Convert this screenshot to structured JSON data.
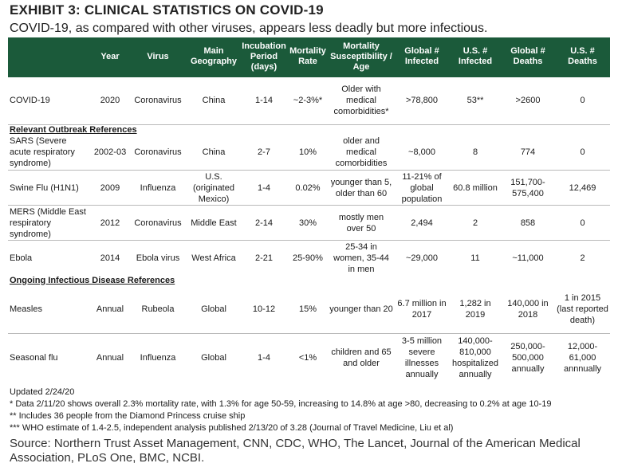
{
  "exhibit": {
    "title": "EXHIBIT 3: CLINICAL STATISTICS ON COVID-19",
    "subtitle": "COVID-19, as compared with other viruses, appears less deadly but more infectious."
  },
  "table": {
    "headers": [
      "",
      "Year",
      "Virus",
      "Main Geography",
      "Incubation Period (days)",
      "Mortality Rate",
      "Mortality Susceptibility / Age",
      "Global # Infected",
      "U.S. # Infected",
      "Global # Deaths",
      "U.S. # Deaths"
    ],
    "covid": {
      "name": "COVID-19",
      "year": "2020",
      "virus": "Coronavirus",
      "geo": "China",
      "incubation": "1-14",
      "rate": "~2-3%*",
      "age": "Older with medical comorbidities*",
      "global_inf": ">78,800",
      "us_inf": "53**",
      "global_deaths": ">2600",
      "us_deaths": "0"
    },
    "section1": "Relevant Outbreak References",
    "outbreaks": [
      {
        "name": "SARS (Severe acute respiratory syndrome)",
        "year": "2002-03",
        "virus": "Coronavirus",
        "geo": "China",
        "incubation": "2-7",
        "rate": "10%",
        "age": "older and medical comorbidities",
        "global_inf": "~8,000",
        "us_inf": "8",
        "global_deaths": "774",
        "us_deaths": "0"
      },
      {
        "name": "Swine Flu (H1N1)",
        "year": "2009",
        "virus": "Influenza",
        "geo": "U.S. (originated Mexico)",
        "incubation": "1-4",
        "rate": "0.02%",
        "age": "younger than 5, older than 60",
        "global_inf": "11-21% of global population",
        "us_inf": "60.8 million",
        "global_deaths": "151,700-575,400",
        "us_deaths": "12,469"
      },
      {
        "name": "MERS (Middle East respiratory syndrome)",
        "year": "2012",
        "virus": "Coronavirus",
        "geo": "Middle East",
        "incubation": "2-14",
        "rate": "30%",
        "age": "mostly men over 50",
        "global_inf": "2,494",
        "us_inf": "2",
        "global_deaths": "858",
        "us_deaths": "0"
      },
      {
        "name": "Ebola",
        "year": "2014",
        "virus": "Ebola virus",
        "geo": "West Africa",
        "incubation": "2-21",
        "rate": "25-90%",
        "age": "25-34 in women, 35-44 in men",
        "global_inf": "~29,000",
        "us_inf": "11",
        "global_deaths": "~11,000",
        "us_deaths": "2"
      }
    ],
    "section2": "Ongoing Infectious Disease References",
    "ongoing": [
      {
        "name": "Measles",
        "year": "Annual",
        "virus": "Rubeola",
        "geo": "Global",
        "incubation": "10-12",
        "rate": "15%",
        "age": "younger than 20",
        "global_inf": "6.7 million in 2017",
        "us_inf": "1,282 in 2019",
        "global_deaths": "140,000 in 2018",
        "us_deaths": "1 in 2015 (last reported death)"
      },
      {
        "name": "Seasonal flu",
        "year": "Annual",
        "virus": "Influenza",
        "geo": "Global",
        "incubation": "1-4",
        "rate": "<1%",
        "age": "children and 65 and older",
        "global_inf": "3-5 million severe illnesses annually",
        "us_inf": "140,000-810,000 hospitalized annually",
        "global_deaths": "250,000-500,000 annually",
        "us_deaths": "12,000-61,000 annnually"
      }
    ]
  },
  "footnotes": [
    "Updated 2/24/20",
    "* Data 2/11/20 shows overall 2.3% mortality rate, with 1.3% for age 50-59, increasing to 14.8% at age >80, decreasing to 0.2% at age 10-19",
    "** Includes 36 people from the Diamond Princess cruise ship",
    "*** WHO estimate of 1.4-2.5, independent analysis published 2/13/20 of 3.28 (Journal of Travel Medicine, Liu et al)"
  ],
  "source": "Source: Northern Trust Asset Management, CNN, CDC, WHO, The Lancet, Journal of the American Medical Association, PLoS One, BMC, NCBI."
}
